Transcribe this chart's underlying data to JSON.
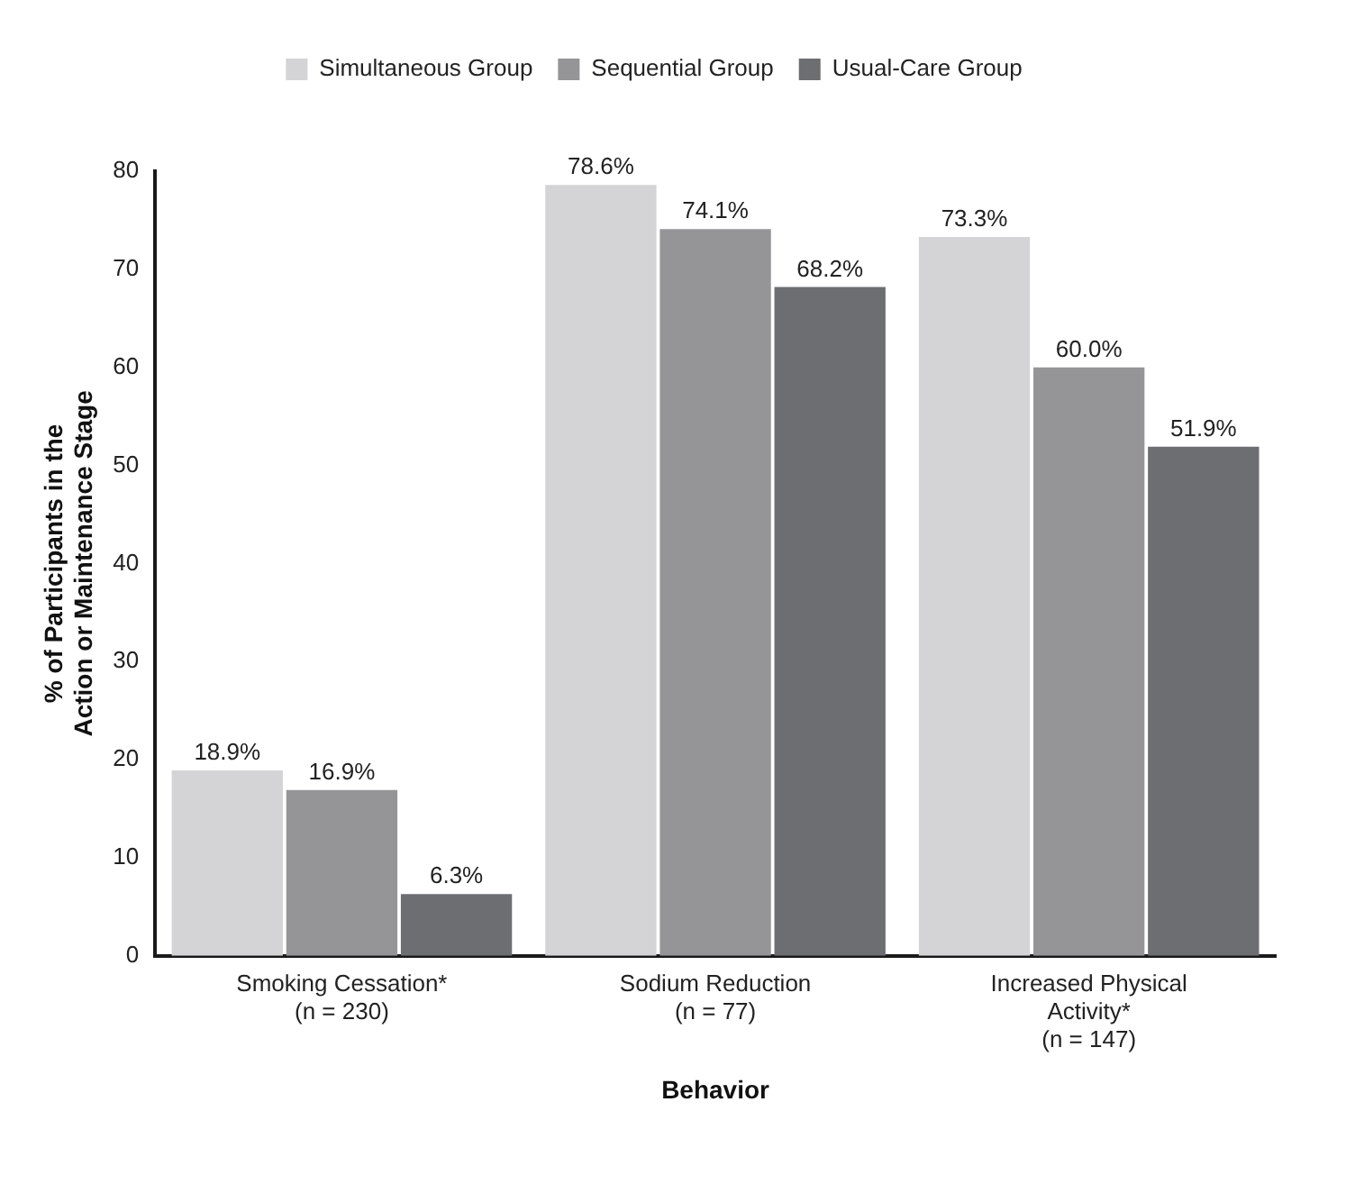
{
  "chart_data": {
    "type": "bar",
    "xlabel": "Behavior",
    "ylabel": "% of Participants in the\nAction or Maintenance Stage",
    "categories": [
      "Smoking Cessation*\n(n = 230)",
      "Sodium Reduction\n(n = 77)",
      "Increased Physical\nActivity*\n(n = 147)"
    ],
    "series": [
      {
        "name": "Simultaneous Group",
        "color": "#d4d4d6",
        "values": [
          18.9,
          78.6,
          73.3
        ],
        "value_labels": [
          "18.9%",
          "78.6%",
          "73.3%"
        ]
      },
      {
        "name": "Sequential Group",
        "color": "#959598",
        "values": [
          16.9,
          74.1,
          60.0
        ],
        "value_labels": [
          "16.9%",
          "74.1%",
          "60.0%"
        ]
      },
      {
        "name": "Usual-Care Group",
        "color": "#6d6e72",
        "values": [
          6.3,
          68.2,
          51.9
        ],
        "value_labels": [
          "6.3%",
          "68.2%",
          "51.9%"
        ]
      }
    ],
    "ylim": [
      0,
      80
    ],
    "yticks": [
      0,
      10,
      20,
      30,
      40,
      50,
      60,
      70,
      80
    ],
    "grid": false,
    "legend": "top"
  }
}
